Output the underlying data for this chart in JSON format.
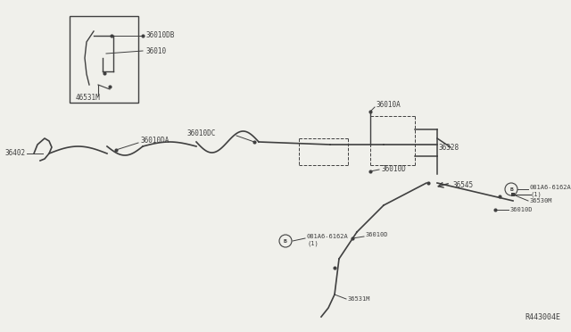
{
  "bg_color": "#f0f0eb",
  "line_color": "#404040",
  "text_color": "#404040",
  "diagram_ref": "R443004E",
  "figsize": [
    6.4,
    3.72
  ],
  "dpi": 100,
  "xlim": [
    0,
    640
  ],
  "ylim": [
    372,
    0
  ]
}
